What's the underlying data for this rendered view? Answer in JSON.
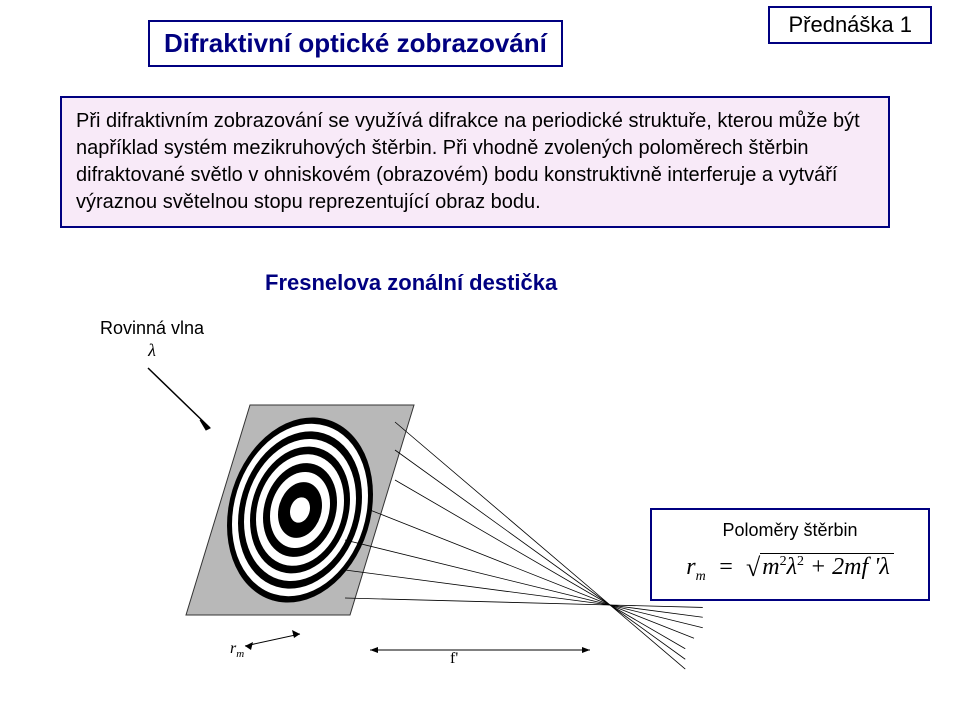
{
  "title": "Difraktivní optické zobrazování",
  "lecture": "Přednáška 1",
  "info_text": "Při difraktivním zobrazování se využívá difrakce na periodické struktuře, kterou může být například systém mezikruhových štěrbin. Při vhodně zvolených poloměrech štěrbin difraktované světlo v ohniskovém (obrazovém) bodu konstruktivně interferuje a vytváří výraznou světelnou stopu reprezentující obraz bodu.",
  "subtitle": "Fresnelova zonální destička",
  "wave_label": "Rovinná vlna",
  "wave_symbol": "λ",
  "formula_label": "Poloměry štěrbin",
  "rm_label": "r",
  "rm_sub": "m",
  "f_label": "f'",
  "diagram": {
    "plate_fill": "#b8b8b8",
    "plate_stroke": "#333333",
    "ring_r": [
      10,
      22,
      30,
      37,
      44,
      50,
      56,
      62,
      68,
      73
    ],
    "ring_ry_scale": 1.25,
    "arrow_color": "#000000",
    "ray_color": "#000000"
  },
  "colors": {
    "border": "#000080",
    "info_bg": "#f8eaf8",
    "title_text": "#000080"
  }
}
